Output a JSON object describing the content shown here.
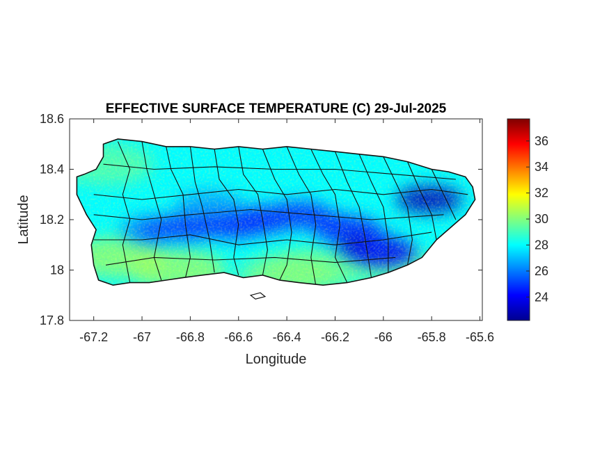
{
  "chart_data": {
    "type": "heatmap",
    "title": "EFFECTIVE SURFACE TEMPERATURE (C) 29-Jul-2025",
    "xlabel": "Longitude",
    "ylabel": "Latitude",
    "xlim": [
      -67.3,
      -65.59
    ],
    "ylim": [
      17.8,
      18.6
    ],
    "xticks": [
      -67.2,
      -67,
      -66.8,
      -66.6,
      -66.4,
      -66.2,
      -66,
      -65.8,
      -65.6
    ],
    "xtick_labels": [
      "-67.2",
      "-67",
      "-66.8",
      "-66.6",
      "-66.4",
      "-66.2",
      "-66",
      "-65.8",
      "-65.6"
    ],
    "yticks": [
      17.8,
      18,
      18.2,
      18.4,
      18.6
    ],
    "ytick_labels": [
      "17.8",
      "18",
      "18.2",
      "18.4",
      "18.6"
    ],
    "colorbar": {
      "min": 22.2,
      "max": 37.7,
      "ticks": [
        24,
        26,
        28,
        30,
        32,
        34,
        36
      ],
      "tick_labels": [
        "24",
        "26",
        "28",
        "30",
        "32",
        "34",
        "36"
      ],
      "colormap": "jet"
    },
    "cool_zones": [
      {
        "lon": -66.82,
        "lat": 18.17,
        "temp": 25.0
      },
      {
        "lon": -66.62,
        "lat": 18.18,
        "temp": 24.5
      },
      {
        "lon": -66.5,
        "lat": 18.2,
        "temp": 24.5
      },
      {
        "lon": -66.35,
        "lat": 18.22,
        "temp": 25.0
      },
      {
        "lon": -66.15,
        "lat": 18.16,
        "temp": 24.5
      },
      {
        "lon": -66.05,
        "lat": 18.09,
        "temp": 23.0
      },
      {
        "lon": -66.0,
        "lat": 18.07,
        "temp": 24.0
      },
      {
        "lon": -65.81,
        "lat": 18.28,
        "temp": 23.0
      },
      {
        "lon": -66.95,
        "lat": 18.16,
        "temp": 26.0
      },
      {
        "lon": -66.72,
        "lat": 18.26,
        "temp": 26.5
      }
    ],
    "warm_zones": [
      {
        "lon": -67.1,
        "lat": 18.05,
        "temp": 30.5
      },
      {
        "lon": -66.85,
        "lat": 18.0,
        "temp": 30.5
      },
      {
        "lon": -66.4,
        "lat": 17.98,
        "temp": 30.0
      },
      {
        "lon": -66.3,
        "lat": 18.0,
        "temp": 30.0
      },
      {
        "lon": -67.15,
        "lat": 18.42,
        "temp": 29.5
      },
      {
        "lon": -65.95,
        "lat": 18.0,
        "temp": 29.5
      }
    ],
    "background_temp": 28.0,
    "grid": false
  }
}
